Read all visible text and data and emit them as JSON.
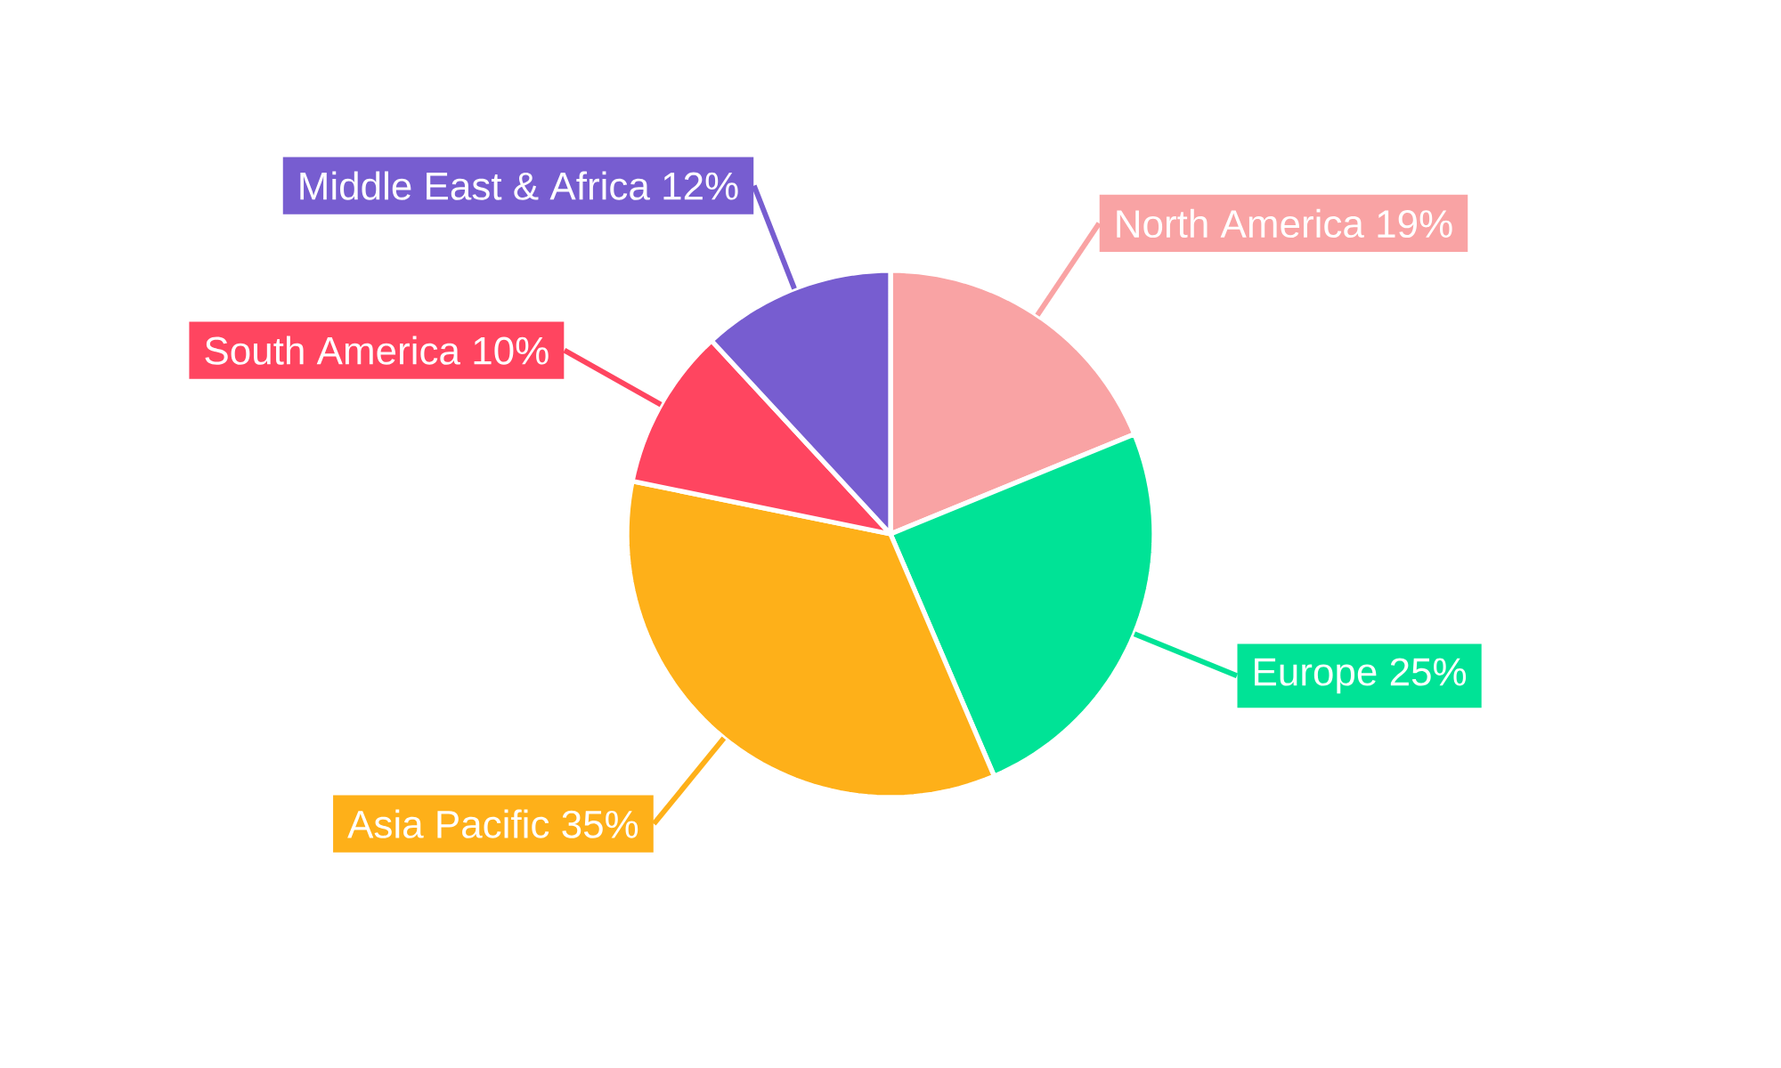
{
  "chart_data": {
    "type": "pie",
    "categories": [
      "North America",
      "Europe",
      "Asia Pacific",
      "South America",
      "Middle East & Africa"
    ],
    "values": [
      19,
      25,
      35,
      10,
      12
    ],
    "colors": [
      "#f9a3a4",
      "#00e396",
      "#feb019",
      "#ff4560",
      "#775dd0"
    ],
    "value_labels": [
      "19%",
      "25%",
      "35%",
      "10%",
      "12%"
    ]
  }
}
